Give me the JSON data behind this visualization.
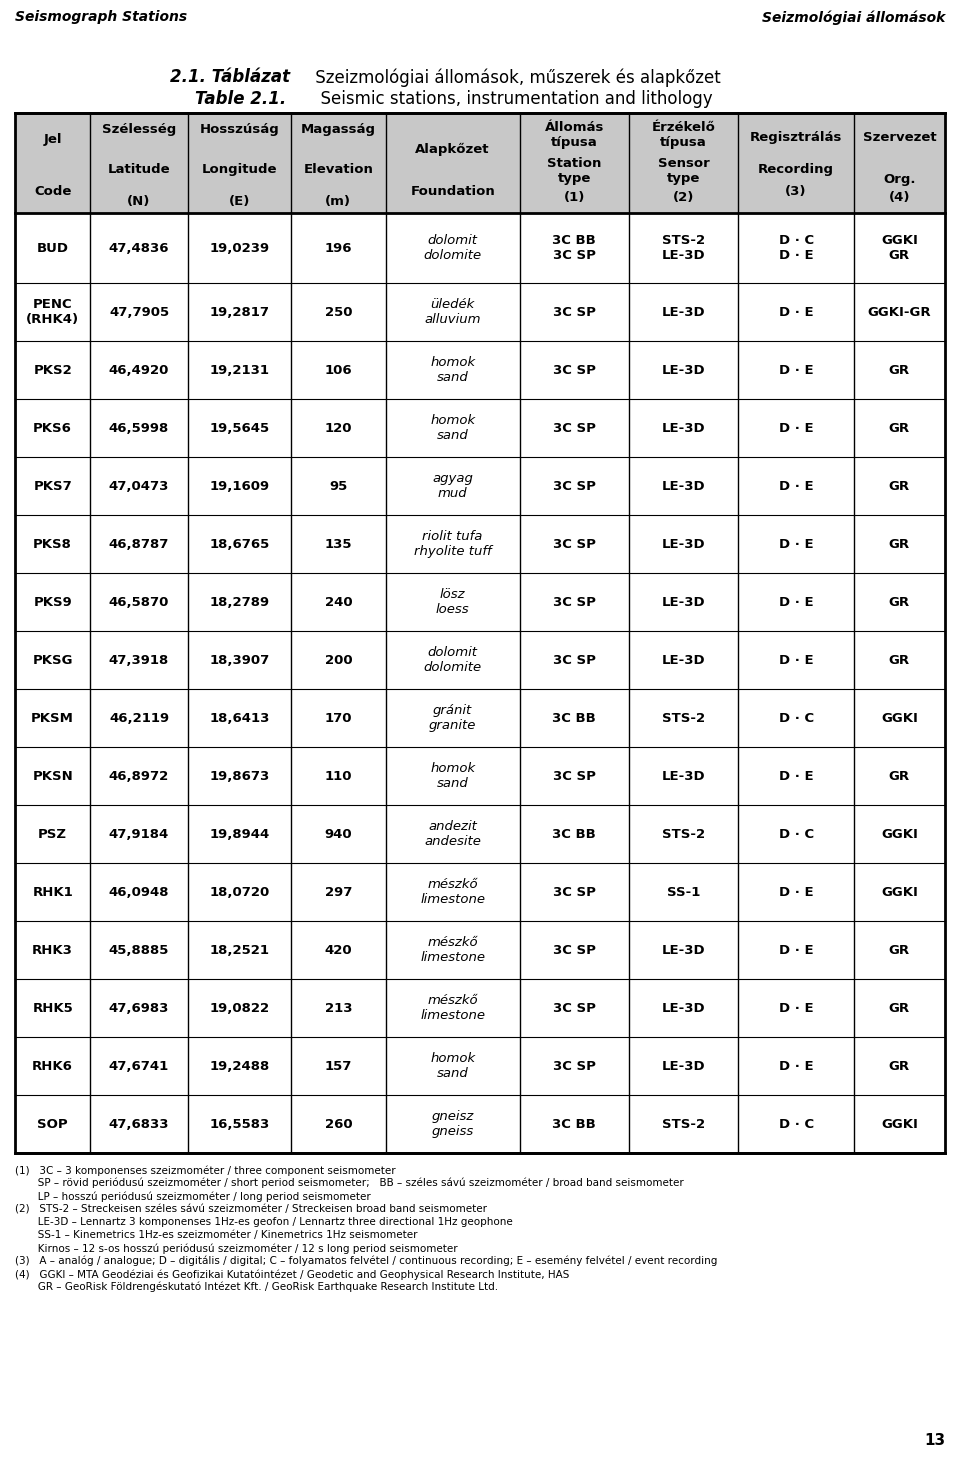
{
  "header_top_left": "Seismograph Stations",
  "header_top_right": "Seizmológiai állomások",
  "title_line1_bold": "2.1. Táblázat",
  "title_line1_rest": " Szeizmológiai állomások, műszerek és alapkőzet",
  "title_line2_bold": "Table 2.1.",
  "title_line2_rest": "  Seismic stations, instrumentation and lithology",
  "col_headers": [
    [
      "Jel",
      "Latitude",
      "Longitude",
      "Elevation",
      "Alapkőzet",
      "Állomás\ntípusa",
      "Érzékelő\ntípusa",
      "Regisztrálás",
      "Szervezet"
    ],
    [
      "Code",
      "(N)",
      "(E)",
      "(m)",
      "Foundation",
      "Station\ntype\n(1)",
      "Sensor\ntype\n(2)",
      "Recording\n(3)",
      "Org.\n(4)"
    ],
    [
      "",
      "Szélesség",
      "Hosszúság",
      "Magasság",
      "",
      "",
      "",
      "",
      ""
    ]
  ],
  "rows": [
    {
      "code": "BUD",
      "lat": "47,4836",
      "lon": "19,0239",
      "elev": "196",
      "foundation": "dolomit\ndolomite",
      "station_type": "3C BB\n3C SP",
      "sensor_type": "STS-2\nLE-3D",
      "recording": "D · C\nD · E",
      "org": "GGKI\nGR"
    },
    {
      "code": "PENC\n(RHK4)",
      "lat": "47,7905",
      "lon": "19,2817",
      "elev": "250",
      "foundation": "üledék\nalluvium",
      "station_type": "3C SP",
      "sensor_type": "LE-3D",
      "recording": "D · E",
      "org": "GGKI-GR"
    },
    {
      "code": "PKS2",
      "lat": "46,4920",
      "lon": "19,2131",
      "elev": "106",
      "foundation": "homok\nsand",
      "station_type": "3C SP",
      "sensor_type": "LE-3D",
      "recording": "D · E",
      "org": "GR"
    },
    {
      "code": "PKS6",
      "lat": "46,5998",
      "lon": "19,5645",
      "elev": "120",
      "foundation": "homok\nsand",
      "station_type": "3C SP",
      "sensor_type": "LE-3D",
      "recording": "D · E",
      "org": "GR"
    },
    {
      "code": "PKS7",
      "lat": "47,0473",
      "lon": "19,1609",
      "elev": "95",
      "foundation": "agyag\nmud",
      "station_type": "3C SP",
      "sensor_type": "LE-3D",
      "recording": "D · E",
      "org": "GR"
    },
    {
      "code": "PKS8",
      "lat": "46,8787",
      "lon": "18,6765",
      "elev": "135",
      "foundation": "riolit tufa\nrhyolite tuff",
      "station_type": "3C SP",
      "sensor_type": "LE-3D",
      "recording": "D · E",
      "org": "GR"
    },
    {
      "code": "PKS9",
      "lat": "46,5870",
      "lon": "18,2789",
      "elev": "240",
      "foundation": "lösz\nloess",
      "station_type": "3C SP",
      "sensor_type": "LE-3D",
      "recording": "D · E",
      "org": "GR"
    },
    {
      "code": "PKSG",
      "lat": "47,3918",
      "lon": "18,3907",
      "elev": "200",
      "foundation": "dolomit\ndolomite",
      "station_type": "3C SP",
      "sensor_type": "LE-3D",
      "recording": "D · E",
      "org": "GR"
    },
    {
      "code": "PKSM",
      "lat": "46,2119",
      "lon": "18,6413",
      "elev": "170",
      "foundation": "gránit\ngranite",
      "station_type": "3C BB",
      "sensor_type": "STS-2",
      "recording": "D · C",
      "org": "GGKI"
    },
    {
      "code": "PKSN",
      "lat": "46,8972",
      "lon": "19,8673",
      "elev": "110",
      "foundation": "homok\nsand",
      "station_type": "3C SP",
      "sensor_type": "LE-3D",
      "recording": "D · E",
      "org": "GR"
    },
    {
      "code": "PSZ",
      "lat": "47,9184",
      "lon": "19,8944",
      "elev": "940",
      "foundation": "andezit\nandesite",
      "station_type": "3C BB",
      "sensor_type": "STS-2",
      "recording": "D · C",
      "org": "GGKI"
    },
    {
      "code": "RHK1",
      "lat": "46,0948",
      "lon": "18,0720",
      "elev": "297",
      "foundation": "mészkő\nlimestone",
      "station_type": "3C SP",
      "sensor_type": "SS-1",
      "recording": "D · E",
      "org": "GGKI"
    },
    {
      "code": "RHK3",
      "lat": "45,8885",
      "lon": "18,2521",
      "elev": "420",
      "foundation": "mészkő\nlimestone",
      "station_type": "3C SP",
      "sensor_type": "LE-3D",
      "recording": "D · E",
      "org": "GR"
    },
    {
      "code": "RHK5",
      "lat": "47,6983",
      "lon": "19,0822",
      "elev": "213",
      "foundation": "mészkő\nlimestone",
      "station_type": "3C SP",
      "sensor_type": "LE-3D",
      "recording": "D · E",
      "org": "GR"
    },
    {
      "code": "RHK6",
      "lat": "47,6741",
      "lon": "19,2488",
      "elev": "157",
      "foundation": "homok\nsand",
      "station_type": "3C SP",
      "sensor_type": "LE-3D",
      "recording": "D · E",
      "org": "GR"
    },
    {
      "code": "SOP",
      "lat": "47,6833",
      "lon": "16,5583",
      "elev": "260",
      "foundation": "gneisz\ngneiss",
      "station_type": "3C BB",
      "sensor_type": "STS-2",
      "recording": "D · C",
      "org": "GGKI"
    }
  ],
  "footnotes": [
    "(1)   3C – 3 komponenses szeizmométer / three component seismometer",
    "       SP – rövid periódusú szeizmométer / short period seismometer;   BB – széles sávú szeizmométer / broad band seismometer",
    "       LP – hosszú periódusú szeizmométer / long period seismometer",
    "(2)   STS-2 – Streckeisen széles sávú szeizmométer / Streckeisen broad band seismometer",
    "       LE-3D – Lennartz 3 komponenses 1Hz-es geofon / Lennartz three directional 1Hz geophone",
    "       SS-1 – Kinemetrics 1Hz-es szeizmométer / Kinemetrics 1Hz seismometer",
    "       Kirnos – 12 s-os hosszú periódusú szeizmométer / 12 s long period seismometer",
    "(3)   A – analóg / analogue; D – digitális / digital; C – folyamatos felvétel / continuous recording; E – esemény felvétel / event recording",
    "(4)   GGKI – MTA Geodéziai és Geofizikai Kutatóintézet / Geodetic and Geophysical Research Institute, HAS",
    "       GR – GeoRisk Földrengéskutató Intézet Kft. / GeoRisk Earthquake Research Institute Ltd."
  ],
  "page_number": "13",
  "header_bg": "#d0d0d0",
  "row_bg": "#ffffff",
  "border_color": "#000000"
}
